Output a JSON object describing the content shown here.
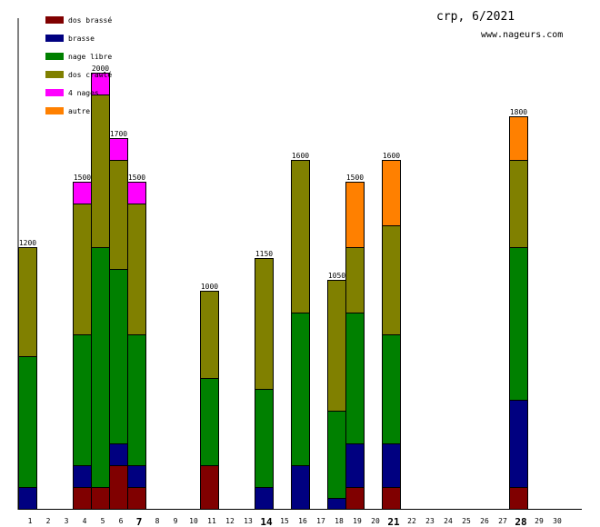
{
  "chart_data": {
    "type": "bar",
    "stacked": true,
    "title": "crp, 6/2021",
    "subtitle": "www.nageurs.com",
    "ylim": [
      0,
      2250
    ],
    "legend": [
      "dos brassé",
      "brasse",
      "nage libre",
      "dos crawlé",
      "4 nages",
      "autre"
    ],
    "series_colors": [
      "#800000",
      "#000080",
      "#008000",
      "#808000",
      "#ff00ff",
      "#ff8000"
    ],
    "categories": [
      "1",
      "2",
      "3",
      "4",
      "5",
      "6",
      "7",
      "8",
      "9",
      "10",
      "11",
      "12",
      "13",
      "14",
      "15",
      "16",
      "17",
      "18",
      "19",
      "20",
      "21",
      "22",
      "23",
      "24",
      "25",
      "26",
      "27",
      "28",
      "29",
      "30"
    ],
    "bold_categories": [
      "7",
      "14",
      "21",
      "28"
    ],
    "series": [
      {
        "name": "dos brassé",
        "values": [
          0,
          0,
          0,
          100,
          100,
          200,
          100,
          0,
          0,
          0,
          200,
          0,
          0,
          0,
          0,
          0,
          0,
          0,
          100,
          0,
          100,
          0,
          0,
          0,
          0,
          0,
          0,
          100,
          0,
          0
        ]
      },
      {
        "name": "brasse",
        "values": [
          100,
          0,
          0,
          100,
          0,
          100,
          100,
          0,
          0,
          0,
          0,
          0,
          0,
          100,
          0,
          200,
          0,
          50,
          200,
          0,
          200,
          0,
          0,
          0,
          0,
          0,
          0,
          400,
          0,
          0
        ]
      },
      {
        "name": "nage libre",
        "values": [
          600,
          0,
          0,
          600,
          1100,
          800,
          600,
          0,
          0,
          0,
          400,
          0,
          0,
          450,
          0,
          700,
          0,
          400,
          600,
          0,
          500,
          0,
          0,
          0,
          0,
          0,
          0,
          700,
          0,
          0
        ]
      },
      {
        "name": "dos crawlé",
        "values": [
          500,
          0,
          0,
          600,
          700,
          500,
          600,
          0,
          0,
          0,
          400,
          0,
          0,
          600,
          0,
          700,
          0,
          600,
          300,
          0,
          500,
          0,
          0,
          0,
          0,
          0,
          0,
          400,
          0,
          0
        ]
      },
      {
        "name": "4 nages",
        "values": [
          0,
          0,
          0,
          100,
          100,
          100,
          100,
          0,
          0,
          0,
          0,
          0,
          0,
          0,
          0,
          0,
          0,
          0,
          0,
          0,
          0,
          0,
          0,
          0,
          0,
          0,
          0,
          0,
          0,
          0
        ]
      },
      {
        "name": "autre",
        "values": [
          0,
          0,
          0,
          0,
          0,
          0,
          0,
          0,
          0,
          0,
          0,
          0,
          0,
          0,
          0,
          0,
          0,
          0,
          300,
          0,
          300,
          0,
          0,
          0,
          0,
          0,
          0,
          200,
          0,
          0
        ]
      }
    ],
    "totals": [
      1200,
      0,
      0,
      1500,
      2000,
      1700,
      1500,
      0,
      0,
      0,
      1000,
      0,
      0,
      1150,
      0,
      1600,
      0,
      1050,
      1500,
      0,
      1600,
      0,
      0,
      0,
      0,
      0,
      0,
      1800,
      0,
      0
    ]
  }
}
